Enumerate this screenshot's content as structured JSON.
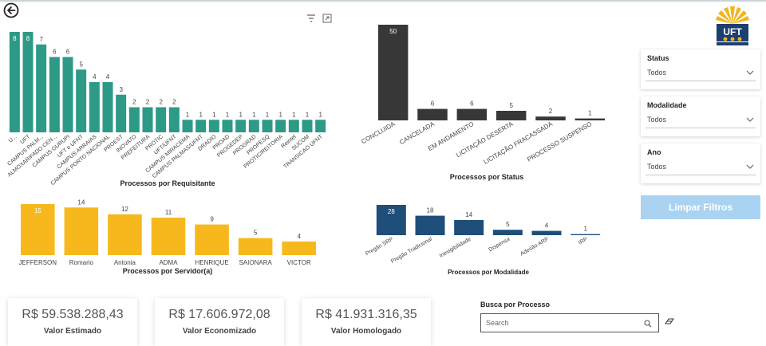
{
  "colors": {
    "teal": "#2d9a87",
    "dark": "#373737",
    "gold": "#f6b81c",
    "navy": "#1e4e79",
    "clear_button": "#a9d3f0"
  },
  "icons": {
    "back": "arrow-left-circle-icon",
    "filter": "filter-icon",
    "focus": "expand-icon",
    "search": "search-icon",
    "eraser": "eraser-icon",
    "dropdown": "chevron-down-icon"
  },
  "logo": {
    "text": "UFT"
  },
  "chart_data": [
    {
      "id": "requisitante",
      "type": "bar",
      "title": "Processos por Requisitante",
      "categories": [
        "U...",
        "UFT",
        "CAMPUS PALM...",
        "ALMOXARIFADO CEN...",
        "CAMPUS GURUPI",
        "UFT e UFNT",
        "CAMPUS ARRAIAS",
        "CAMPUS PORTO NACIONAL",
        "PROEST",
        "INOVATO",
        "PREFEITURA",
        "PROTIC",
        "UFT/UFNT",
        "CAMPUS MIRACEMA",
        "CAMPUS PALMAS/UFNT",
        "DRADIO",
        "PROAD",
        "PROGEDEP",
        "PROGRAD",
        "PROPESQ",
        "PROTIC/REITORIA",
        "Reintel",
        "SUCOM",
        "TRANSICAO UFNT"
      ],
      "values": [
        8,
        8,
        7,
        6,
        6,
        5,
        4,
        4,
        3,
        2,
        2,
        2,
        2,
        1,
        1,
        1,
        1,
        1,
        1,
        1,
        1,
        1,
        1,
        1
      ],
      "ylim": [
        0,
        8
      ],
      "color": "#2d9a87"
    },
    {
      "id": "status",
      "type": "bar",
      "title": "Processos por Status",
      "categories": [
        "CONCLUIDA",
        "CANCELADA",
        "EM ANDAMENTO",
        "LICITAÇÃO DESERTA",
        "LICITAÇÃO FRACASSADA",
        "PROCESSO SUSPENSO"
      ],
      "values": [
        50,
        6,
        6,
        5,
        2,
        1
      ],
      "ylim": [
        0,
        50
      ],
      "color": "#373737"
    },
    {
      "id": "servidor",
      "type": "bar",
      "title": "Processos por Servidor(a)",
      "categories": [
        "JEFFERSON",
        "Romario",
        "Antonia",
        "ADMA",
        "HENRIQUE",
        "SAIONARA",
        "VICTOR"
      ],
      "values": [
        15,
        14,
        12,
        11,
        9,
        5,
        4
      ],
      "ylim": [
        0,
        15
      ],
      "color": "#f6b81c"
    },
    {
      "id": "modalidade",
      "type": "bar",
      "title": "Processos por Modalidade",
      "categories": [
        "Pregão SRP",
        "Pregão Tradicional",
        "Inexigibilidade",
        "Dispensa",
        "Adesão ARP",
        "IRP"
      ],
      "values": [
        28,
        18,
        14,
        5,
        4,
        1
      ],
      "ylim": [
        0,
        28
      ],
      "color": "#1e4e79"
    }
  ],
  "filters": {
    "status": {
      "label": "Status",
      "value": "Todos"
    },
    "modalidade": {
      "label": "Modalidade",
      "value": "Todos"
    },
    "ano": {
      "label": "Ano",
      "value": "Todos"
    },
    "clear_label": "Limpar Filtros"
  },
  "kpis": [
    {
      "value": "R$ 59.538.288,43",
      "label": "Valor Estimado"
    },
    {
      "value": "R$ 17.606.972,08",
      "label": "Valor Economizado"
    },
    {
      "value": "R$ 41.931.316,35",
      "label": "Valor Homologado"
    }
  ],
  "search": {
    "title": "Busca por Processo",
    "placeholder": "Search"
  }
}
